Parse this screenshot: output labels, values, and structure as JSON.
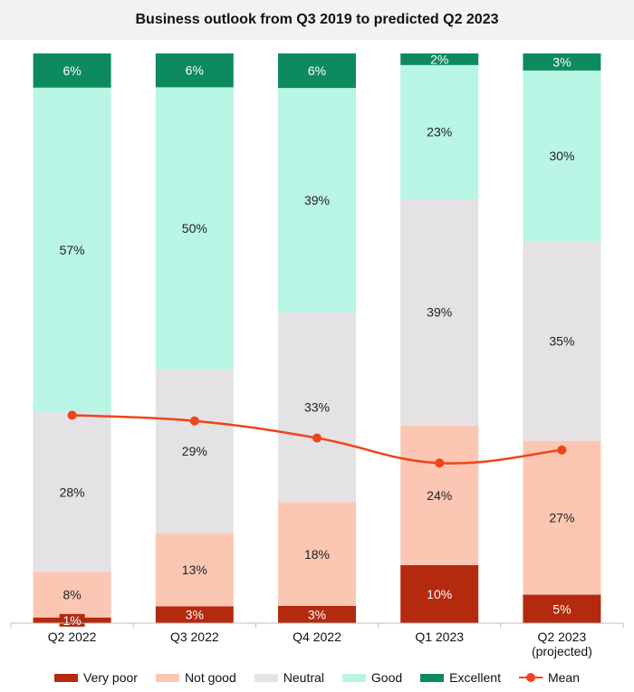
{
  "chart_data": {
    "type": "bar",
    "stacked": true,
    "title": "Business outlook from Q3 2019 to predicted Q2 2023",
    "categories": [
      "Q2 2022",
      "Q3 2022",
      "Q4 2022",
      "Q1 2023",
      "Q2 2023"
    ],
    "category_sublabels": [
      "",
      "",
      "",
      "",
      "(projected)"
    ],
    "series": [
      {
        "name": "Very poor",
        "color": "#b42a0f",
        "values": [
          1,
          3,
          3,
          10,
          5
        ],
        "labels": [
          "1%",
          "3%",
          "3%",
          "10%",
          "5%"
        ],
        "label_color": "#ffffff"
      },
      {
        "name": "Not good",
        "color": "#fcc7b2",
        "values": [
          8,
          13,
          18,
          24,
          27
        ],
        "labels": [
          "8%",
          "13%",
          "18%",
          "24%",
          "27%"
        ],
        "label_color": "#222222"
      },
      {
        "name": "Neutral",
        "color": "#e4e2e4",
        "values": [
          28,
          29,
          33,
          39,
          35
        ],
        "labels": [
          "28%",
          "29%",
          "33%",
          "39%",
          "35%"
        ],
        "label_color": "#222222"
      },
      {
        "name": "Good",
        "color": "#b9f5e4",
        "values": [
          57,
          50,
          39,
          23,
          30
        ],
        "labels": [
          "57%",
          "50%",
          "39%",
          "23%",
          "30%"
        ],
        "label_color": "#222222"
      },
      {
        "name": "Excellent",
        "color": "#0e8a5f",
        "values": [
          6,
          6,
          6,
          2,
          3
        ],
        "labels": [
          "6%",
          "6%",
          "6%",
          "2%",
          "3%"
        ],
        "label_color": "#ffffff"
      }
    ],
    "mean": {
      "name": "Mean",
      "color": "#f0441c",
      "values": [
        36.5,
        35.5,
        32.5,
        28.1,
        30.4
      ]
    },
    "ylim": [
      0,
      100
    ],
    "xlabel": "",
    "ylabel": "",
    "grid": false,
    "legend_position": "bottom"
  }
}
